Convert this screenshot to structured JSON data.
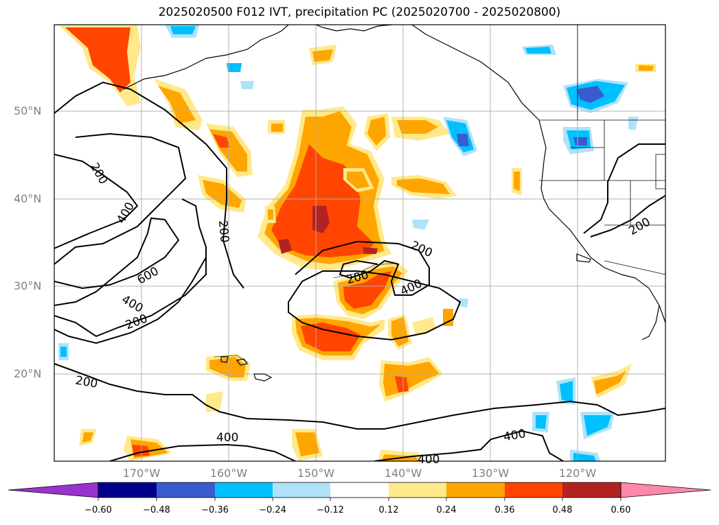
{
  "title": "2025020500 F012 IVT, precipitation PC (2025020700 - 2025020800)",
  "latitude_labels": [
    "50°N",
    "40°N",
    "30°N",
    "20°N"
  ],
  "longitude_labels": [
    "170°W",
    "160°W",
    "150°W",
    "140°W",
    "130°W",
    "120°W"
  ],
  "ivt_contour_labels": [
    "200",
    "400",
    "200",
    "600",
    "400",
    "200",
    "200",
    "200",
    "400",
    "200",
    "400",
    "400",
    "400",
    "200"
  ],
  "colorbar": {
    "tick_labels": [
      "−0.60",
      "−0.48",
      "−0.36",
      "−0.24",
      "−0.12",
      "0.12",
      "0.24",
      "0.36",
      "0.48",
      "0.60"
    ],
    "colors": {
      "below": "#9933cc",
      "n060": "#00008b",
      "n048": "#3a5bcf",
      "n036": "#00bfff",
      "n024": "#aee3fa",
      "n012": "#ffffff",
      "p012": "#ffe98a",
      "p024": "#ffa500",
      "p036": "#ff4500",
      "p048": "#b22222",
      "above": "#ff88aa"
    }
  }
}
